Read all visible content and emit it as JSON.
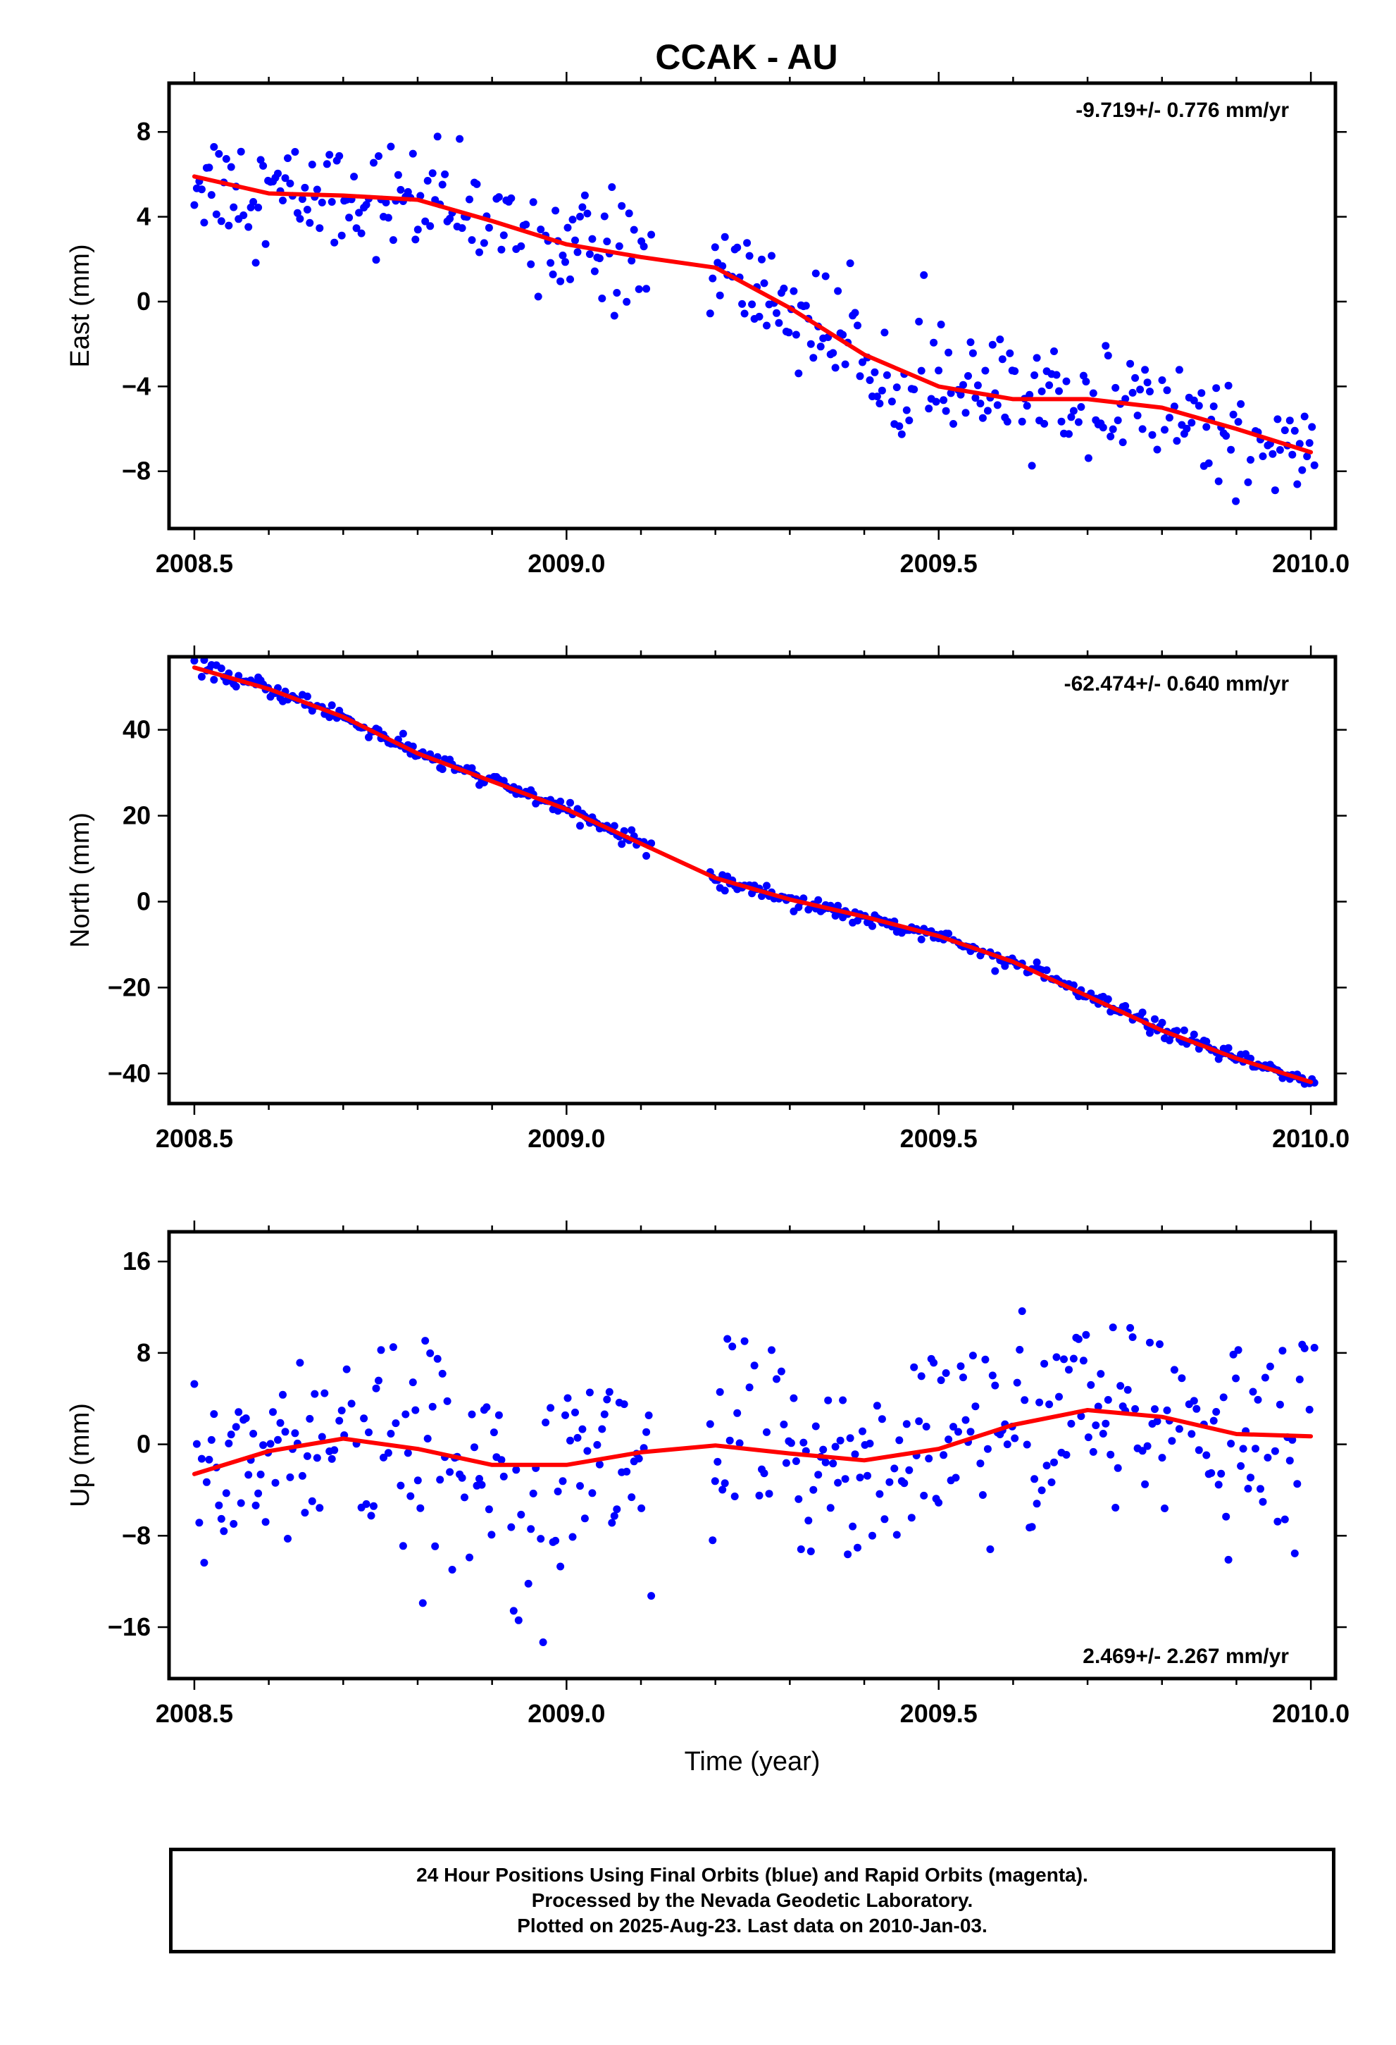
{
  "title": "CCAK - AU",
  "colors": {
    "points": "#0000ff",
    "fit": "#ff0000",
    "frame": "#000000"
  },
  "chart_data": [
    {
      "type": "scatter",
      "name": "east",
      "ylabel": "East (mm)",
      "xlabel": "",
      "xlim": [
        2008.466,
        2010.033
      ],
      "ylim": [
        -10.7,
        10.3
      ],
      "xticks": [
        2008.5,
        2009.0,
        2009.5,
        2010.0
      ],
      "xtick_labels": [
        "2008.5",
        "2009.0",
        "2009.5",
        "2010.0"
      ],
      "yticks": [
        -8,
        -4,
        0,
        4,
        8
      ],
      "ytick_labels": [
        "−8",
        "−4",
        "0",
        "4",
        "8"
      ],
      "rate_label": "-9.719+/- 0.776 mm/yr",
      "rate_position": "top-right",
      "fit_line": {
        "x": [
          2008.5,
          2008.6,
          2008.7,
          2008.8,
          2008.9,
          2009.0,
          2009.1,
          2009.2,
          2009.3,
          2009.4,
          2009.5,
          2009.6,
          2009.7,
          2009.8,
          2009.9,
          2010.0
        ],
        "y": [
          5.9,
          5.1,
          5.0,
          4.8,
          3.8,
          2.7,
          2.1,
          1.6,
          -0.3,
          -2.5,
          -4.0,
          -4.6,
          -4.6,
          -5.0,
          -6.0,
          -7.1
        ]
      }
    },
    {
      "type": "scatter",
      "name": "north",
      "ylabel": "North (mm)",
      "xlabel": "",
      "xlim": [
        2008.466,
        2010.033
      ],
      "ylim": [
        -47,
        57
      ],
      "xticks": [
        2008.5,
        2009.0,
        2009.5,
        2010.0
      ],
      "xtick_labels": [
        "2008.5",
        "2009.0",
        "2009.5",
        "2010.0"
      ],
      "yticks": [
        -40,
        -20,
        0,
        20,
        40
      ],
      "ytick_labels": [
        "−40",
        "−20",
        "0",
        "20",
        "40"
      ],
      "rate_label": "-62.474+/- 0.640 mm/yr",
      "rate_position": "top-right",
      "fit_line": {
        "x": [
          2008.5,
          2008.6,
          2008.7,
          2008.8,
          2008.9,
          2009.0,
          2009.1,
          2009.2,
          2009.3,
          2009.4,
          2009.5,
          2009.6,
          2009.7,
          2009.8,
          2009.9,
          2010.0
        ],
        "y": [
          54.5,
          49.5,
          43.0,
          34.5,
          28.0,
          21.5,
          13.5,
          5.5,
          0.5,
          -3.5,
          -8.0,
          -14.0,
          -22.0,
          -30.0,
          -36.5,
          -42.0
        ]
      }
    },
    {
      "type": "scatter",
      "name": "up",
      "ylabel": "Up (mm)",
      "xlabel": "Time (year)",
      "xlim": [
        2008.466,
        2010.033
      ],
      "ylim": [
        -20.5,
        18.6
      ],
      "xticks": [
        2008.5,
        2009.0,
        2009.5,
        2010.0
      ],
      "xtick_labels": [
        "2008.5",
        "2009.0",
        "2009.5",
        "2010.0"
      ],
      "yticks": [
        -16,
        -8,
        0,
        8,
        16
      ],
      "ytick_labels": [
        "−16",
        "−8",
        "0",
        "8",
        "16"
      ],
      "rate_label": "2.469+/- 2.267 mm/yr",
      "rate_position": "bottom-right",
      "fit_line": {
        "x": [
          2008.5,
          2008.6,
          2008.7,
          2008.8,
          2008.9,
          2009.0,
          2009.1,
          2009.2,
          2009.3,
          2009.4,
          2009.5,
          2009.6,
          2009.7,
          2009.8,
          2009.9,
          2010.0
        ],
        "y": [
          -2.6,
          -0.6,
          0.5,
          -0.4,
          -1.8,
          -1.8,
          -0.7,
          -0.1,
          -0.8,
          -1.4,
          -0.4,
          1.7,
          3.0,
          2.4,
          0.9,
          0.7
        ]
      }
    }
  ],
  "footer": {
    "line1": "24 Hour Positions Using Final Orbits (blue) and Rapid Orbits (magenta).",
    "line2": "Processed by the Nevada Geodetic Laboratory.",
    "line3": "Plotted on 2025-Aug-23. Last data on 2010-Jan-03."
  }
}
